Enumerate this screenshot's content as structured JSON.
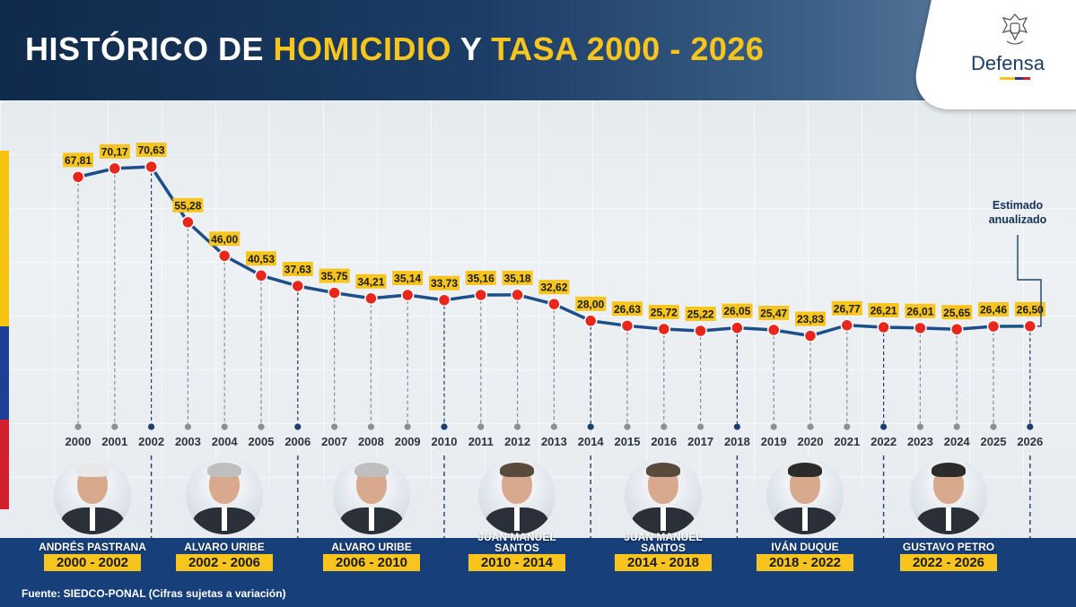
{
  "header": {
    "title_part1": "HISTÓRICO DE ",
    "title_hl1": "HOMICIDIO",
    "title_part2": " Y ",
    "title_hl2": "TASA 2000 - 2026",
    "logo_text": "Defensa",
    "logo_icon": "coat-of-arms-icon"
  },
  "chart_data": {
    "type": "line",
    "title": "HISTÓRICO DE HOMICIDIO Y TASA 2000 - 2026",
    "x": [
      "2000",
      "2001",
      "2002",
      "2003",
      "2004",
      "2005",
      "2006",
      "2007",
      "2008",
      "2009",
      "2010",
      "2011",
      "2012",
      "2013",
      "2014",
      "2015",
      "2016",
      "2017",
      "2018",
      "2019",
      "2020",
      "2021",
      "2022",
      "2023",
      "2024",
      "2025",
      "2026"
    ],
    "values": [
      67.81,
      70.17,
      70.63,
      55.28,
      46.0,
      40.53,
      37.63,
      35.75,
      34.21,
      35.14,
      33.73,
      35.16,
      35.18,
      32.62,
      28.0,
      26.63,
      25.72,
      25.22,
      26.05,
      25.47,
      23.83,
      26.77,
      26.21,
      26.01,
      25.65,
      26.46,
      26.5
    ],
    "value_labels": [
      "67,81",
      "70,17",
      "70,63",
      "55,28",
      "46,00",
      "40,53",
      "37,63",
      "35,75",
      "34,21",
      "35,14",
      "33,73",
      "35,16",
      "35,18",
      "32,62",
      "28,00",
      "26,63",
      "25,72",
      "25,22",
      "26,05",
      "25,47",
      "23,83",
      "26,77",
      "26,21",
      "26,01",
      "25,65",
      "26,46",
      "26,50"
    ],
    "term_boundary_years": [
      "2002",
      "2006",
      "2010",
      "2014",
      "2018",
      "2022",
      "2026"
    ],
    "annotation": {
      "text_line1": "Estimado",
      "text_line2": "anualizado",
      "year": "2026"
    },
    "colors": {
      "line": "#1c4f8a",
      "point": "#e8261b",
      "label_bg": "#f7c51e"
    }
  },
  "presidents": [
    {
      "name_line1": "ANDRÉS PASTRANA",
      "name_line2": "",
      "period": "2000 - 2002",
      "hair": "#e8e8e8"
    },
    {
      "name_line1": "ALVARO URIBE",
      "name_line2": "",
      "period": "2002 - 2006",
      "hair": "#bfbfbf"
    },
    {
      "name_line1": "ALVARO URIBE",
      "name_line2": "",
      "period": "2006 - 2010",
      "hair": "#bfbfbf"
    },
    {
      "name_line1": "JUAN MANUEL",
      "name_line2": "SANTOS",
      "period": "2010 - 2014",
      "hair": "#5a4a3c"
    },
    {
      "name_line1": "JUAN MANUEL",
      "name_line2": "SANTOS",
      "period": "2014 - 2018",
      "hair": "#5a4a3c"
    },
    {
      "name_line1": "IVÁN DUQUE",
      "name_line2": "",
      "period": "2018 - 2022",
      "hair": "#2b2b2b"
    },
    {
      "name_line1": "GUSTAVO PETRO",
      "name_line2": "",
      "period": "2022 - 2026",
      "hair": "#2b2b2b"
    }
  ],
  "footer": {
    "source": "Fuente: SIEDCO-PONAL (Cifras sujetas a variación)"
  }
}
